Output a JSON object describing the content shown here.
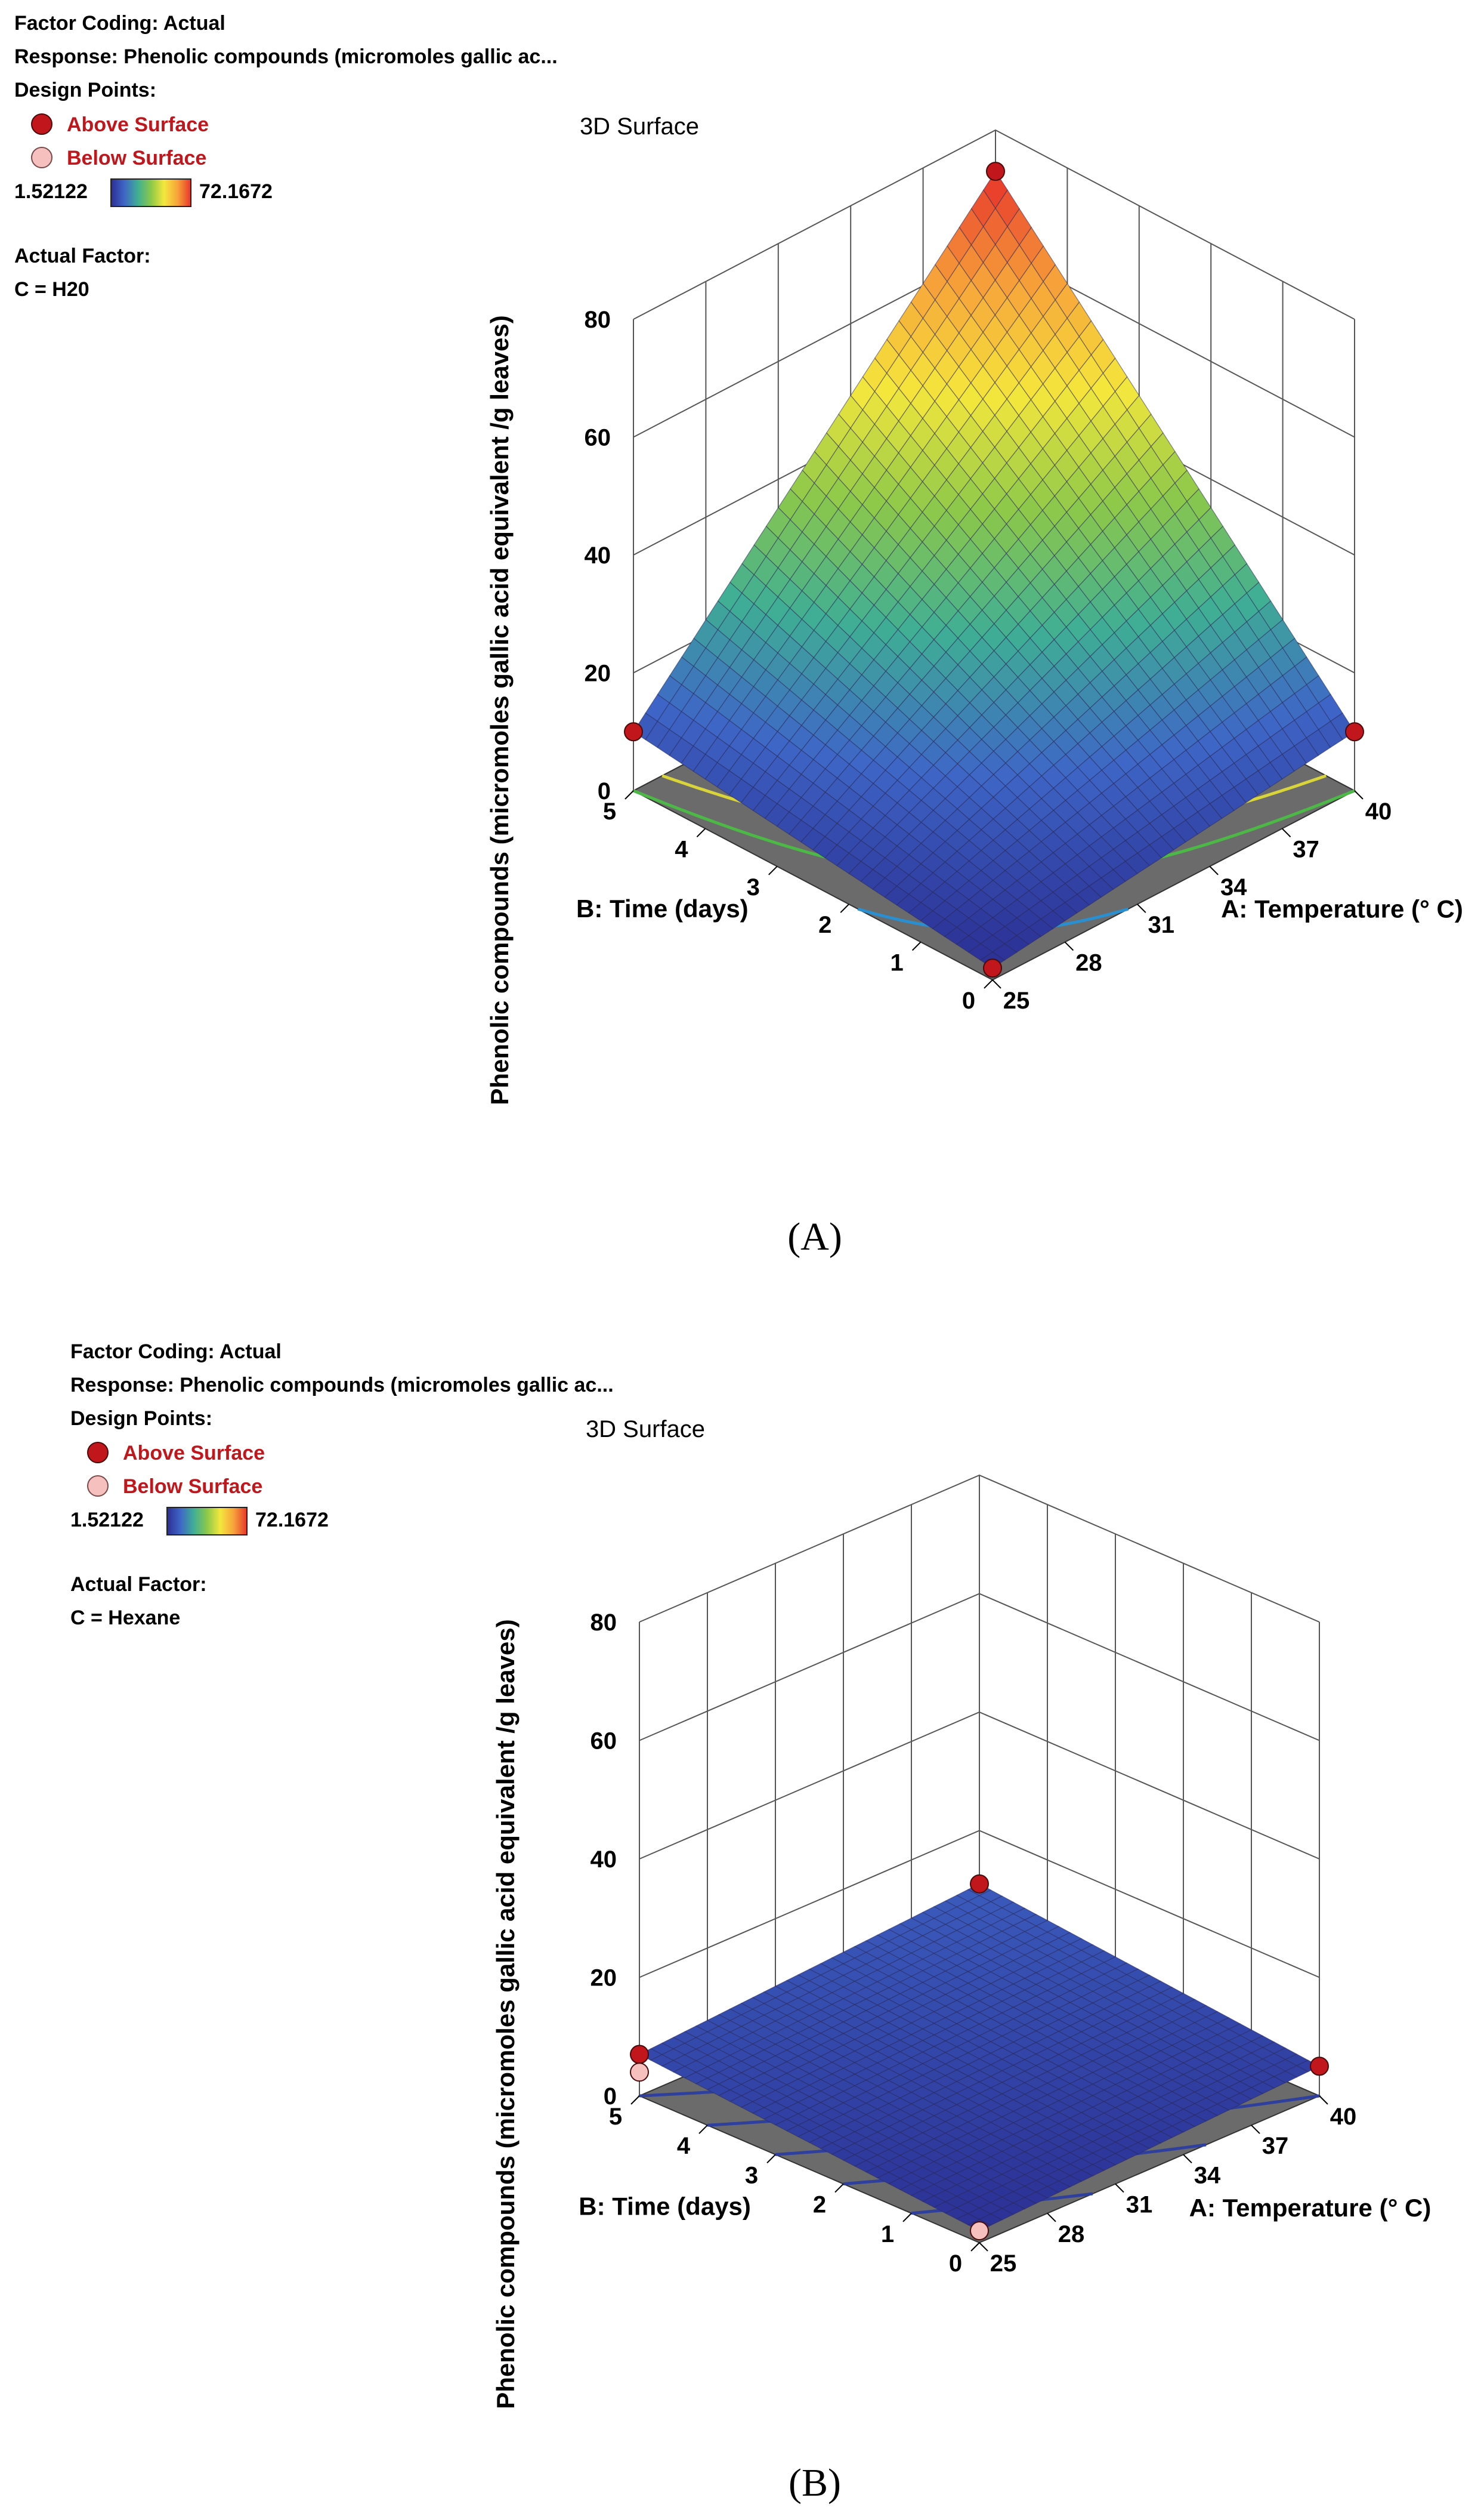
{
  "panels": [
    {
      "label": "(A)",
      "legend": {
        "factor_coding": "Factor Coding: Actual",
        "response": "Response: Phenolic compounds (micromoles gallic ac...",
        "design_points": "Design Points:",
        "above_surface": "Above Surface",
        "below_surface": "Below Surface",
        "range_min": "1.52122",
        "range_max": "72.1672",
        "actual_factor_title": "Actual Factor:",
        "actual_factor_value": "C = H20"
      }
    },
    {
      "label": "(B)",
      "legend": {
        "factor_coding": "Factor Coding: Actual",
        "response": "Response: Phenolic compounds (micromoles gallic ac...",
        "design_points": "Design Points:",
        "above_surface": "Above Surface",
        "below_surface": "Below Surface",
        "range_min": "1.52122",
        "range_max": "72.1672",
        "actual_factor_title": "Actual Factor:",
        "actual_factor_value": "C = Hexane"
      }
    }
  ],
  "colors": {
    "legend_text": "#000000",
    "point_above": "#c0161c",
    "point_below": "#f6c0bf",
    "floor": "#6b6b6b",
    "gradient": [
      "#2b2e93",
      "#3e66c7",
      "#3fae95",
      "#8cc84a",
      "#f5e73c",
      "#f7a33a",
      "#e8352b"
    ]
  },
  "chart_data": [
    {
      "type": "surface3d",
      "title": "3D Surface",
      "x_label": "A: Temperature (° C)",
      "y_label": "B: Time (days)",
      "z_label": "Phenolic compounds (micromoles gallic acid equivalent /g leaves)",
      "x_ticks": [
        "25",
        "28",
        "31",
        "34",
        "37",
        "40"
      ],
      "y_ticks": [
        "0",
        "1",
        "2",
        "3",
        "4",
        "5"
      ],
      "z_ticks": [
        "0",
        "20",
        "40",
        "60",
        "80"
      ],
      "x_range": [
        25,
        40
      ],
      "y_range": [
        0,
        5
      ],
      "z_range": [
        0,
        80
      ],
      "color_scale": [
        1.52122,
        72.1672
      ],
      "corners": [
        {
          "temperature": 25,
          "time": 0,
          "value": 2
        },
        {
          "temperature": 40,
          "time": 0,
          "value": 10
        },
        {
          "temperature": 25,
          "time": 5,
          "value": 10
        },
        {
          "temperature": 40,
          "time": 5,
          "value": 73
        }
      ],
      "design_points": [
        {
          "temperature": 25,
          "time": 0,
          "value": 2,
          "position": "above"
        },
        {
          "temperature": 40,
          "time": 0,
          "value": 10,
          "position": "above"
        },
        {
          "temperature": 25,
          "time": 5,
          "value": 10,
          "position": "above"
        },
        {
          "temperature": 40,
          "time": 5,
          "value": 73,
          "position": "above"
        }
      ],
      "contour_levels": [
        5,
        10,
        15
      ],
      "contour_colors": [
        "#2a8fd0",
        "#4cb846",
        "#d9d43a"
      ],
      "grid": true
    },
    {
      "type": "surface3d",
      "title": "3D Surface",
      "x_label": "A: Temperature (° C)",
      "y_label": "B: Time (days)",
      "z_label": "Phenolic compounds (micromoles gallic acid equivalent /g leaves)",
      "x_ticks": [
        "25",
        "28",
        "31",
        "34",
        "37",
        "40"
      ],
      "y_ticks": [
        "0",
        "1",
        "2",
        "3",
        "4",
        "5"
      ],
      "z_ticks": [
        "0",
        "20",
        "40",
        "60",
        "80"
      ],
      "x_range": [
        25,
        40
      ],
      "y_range": [
        0,
        5
      ],
      "z_range": [
        0,
        80
      ],
      "color_scale": [
        1.52122,
        72.1672
      ],
      "corners": [
        {
          "temperature": 25,
          "time": 0,
          "value": 2
        },
        {
          "temperature": 40,
          "time": 0,
          "value": 5
        },
        {
          "temperature": 25,
          "time": 5,
          "value": 7
        },
        {
          "temperature": 40,
          "time": 5,
          "value": 11
        }
      ],
      "design_points": [
        {
          "temperature": 25,
          "time": 0,
          "value": 2,
          "position": "below"
        },
        {
          "temperature": 40,
          "time": 0,
          "value": 5,
          "position": "above"
        },
        {
          "temperature": 25,
          "time": 5,
          "value": 7,
          "position": "above"
        },
        {
          "temperature": 25,
          "time": 5,
          "value": 4,
          "position": "below"
        },
        {
          "temperature": 40,
          "time": 5,
          "value": 11,
          "position": "above"
        }
      ],
      "contour_levels": [
        3,
        4,
        5,
        6,
        7,
        8
      ],
      "contour_colors": [
        "#2e3f9e",
        "#2e3f9e",
        "#2e3f9e",
        "#2e3f9e",
        "#2e3f9e",
        "#2e3f9e"
      ],
      "grid": true
    }
  ]
}
